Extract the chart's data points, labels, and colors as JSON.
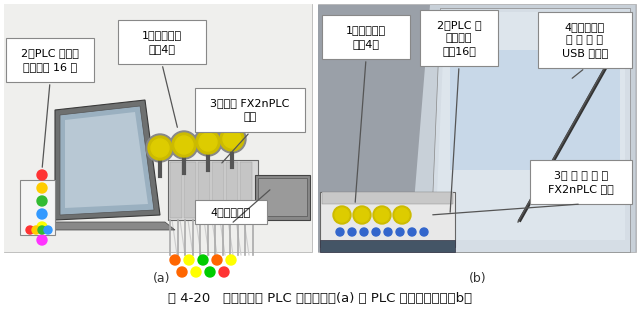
{
  "fig_width": 6.4,
  "fig_height": 3.12,
  "dpi": 100,
  "bg_color": "#ffffff",
  "caption": "图 4-20   初学者入门 PLC 资源组合图(a) 与 PLC 学习机比较图（b）",
  "caption_fontsize": 9.5,
  "label_a": "(a)",
  "label_b": "(b)",
  "label_fontsize": 9,
  "left_bg": "#f0eeec",
  "right_bg": "#c8cdd5"
}
